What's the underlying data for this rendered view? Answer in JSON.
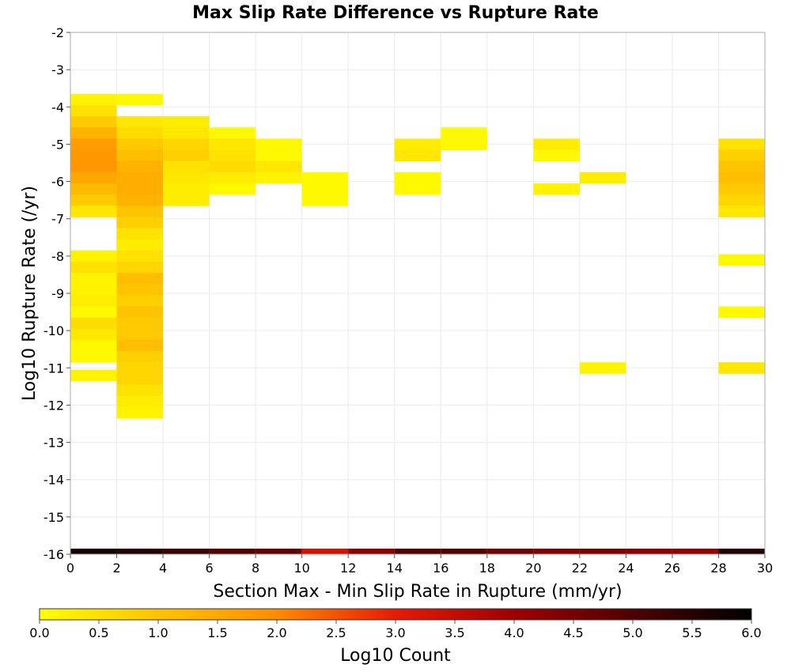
{
  "chart_data": {
    "type": "heatmap",
    "title": "Max Slip Rate Difference vs Rupture Rate",
    "xlabel": "Section Max - Min Slip Rate in Rupture (mm/yr)",
    "ylabel": "Log10 Rupture Rate (/yr)",
    "xlim": [
      0,
      30
    ],
    "ylim": [
      -16,
      -2
    ],
    "x_ticks": [
      "0",
      "2",
      "4",
      "6",
      "8",
      "10",
      "12",
      "14",
      "16",
      "18",
      "20",
      "22",
      "24",
      "26",
      "28",
      "30"
    ],
    "y_ticks": [
      "-2",
      "-3",
      "-4",
      "-5",
      "-6",
      "-7",
      "-8",
      "-9",
      "-10",
      "-11",
      "-12",
      "-13",
      "-14",
      "-15",
      "-16"
    ],
    "grid": true,
    "colorbar": {
      "label": "Log10 Count",
      "range": [
        0,
        6
      ],
      "ticks": [
        "0.0",
        "0.5",
        "1.0",
        "1.5",
        "2.0",
        "2.5",
        "3.0",
        "3.5",
        "4.0",
        "4.5",
        "5.0",
        "5.5",
        "6.0"
      ],
      "colormap": "yellow-orange-red-black"
    },
    "x_bin_width": 2,
    "y_bin_height": 0.3,
    "cells": [
      [
        0,
        -3.8,
        0.2
      ],
      [
        0,
        -4.1,
        0.5
      ],
      [
        0,
        -4.4,
        0.9
      ],
      [
        0,
        -4.7,
        1.3
      ],
      [
        0,
        -5.0,
        1.7
      ],
      [
        0,
        -5.3,
        1.8
      ],
      [
        0,
        -5.6,
        1.8
      ],
      [
        0,
        -5.9,
        1.5
      ],
      [
        0,
        -6.2,
        1.2
      ],
      [
        0,
        -6.5,
        0.9
      ],
      [
        0,
        -6.8,
        0.4
      ],
      [
        0,
        -8.0,
        0.2
      ],
      [
        0,
        -8.3,
        0.5
      ],
      [
        0,
        -8.6,
        0.2
      ],
      [
        0,
        -8.9,
        0.2
      ],
      [
        0,
        -9.2,
        0.3
      ],
      [
        0,
        -9.5,
        0.1
      ],
      [
        0,
        -9.8,
        0.6
      ],
      [
        0,
        -10.1,
        0.4
      ],
      [
        0,
        -10.4,
        0.1
      ],
      [
        0,
        -10.7,
        0.1
      ],
      [
        0,
        -11.2,
        0.2
      ],
      [
        2,
        -3.8,
        0.1
      ],
      [
        2,
        -4.4,
        0.4
      ],
      [
        2,
        -4.7,
        0.6
      ],
      [
        2,
        -5.0,
        0.9
      ],
      [
        2,
        -5.3,
        1.1
      ],
      [
        2,
        -5.6,
        1.3
      ],
      [
        2,
        -5.9,
        1.4
      ],
      [
        2,
        -6.2,
        1.4
      ],
      [
        2,
        -6.5,
        1.3
      ],
      [
        2,
        -6.8,
        1.0
      ],
      [
        2,
        -7.1,
        0.8
      ],
      [
        2,
        -7.4,
        0.5
      ],
      [
        2,
        -7.7,
        0.3
      ],
      [
        2,
        -8.0,
        0.5
      ],
      [
        2,
        -8.3,
        0.7
      ],
      [
        2,
        -8.6,
        1.1
      ],
      [
        2,
        -8.9,
        1.0
      ],
      [
        2,
        -9.2,
        0.8
      ],
      [
        2,
        -9.5,
        1.0
      ],
      [
        2,
        -9.8,
        0.9
      ],
      [
        2,
        -10.1,
        0.9
      ],
      [
        2,
        -10.4,
        1.1
      ],
      [
        2,
        -10.7,
        0.8
      ],
      [
        2,
        -11.0,
        0.7
      ],
      [
        2,
        -11.3,
        0.7
      ],
      [
        2,
        -11.6,
        0.5
      ],
      [
        2,
        -11.9,
        0.3
      ],
      [
        2,
        -12.2,
        0.2
      ],
      [
        4,
        -4.4,
        0.3
      ],
      [
        4,
        -4.7,
        0.4
      ],
      [
        4,
        -5.0,
        0.7
      ],
      [
        4,
        -5.3,
        0.8
      ],
      [
        4,
        -5.6,
        0.5
      ],
      [
        4,
        -5.9,
        0.4
      ],
      [
        4,
        -6.2,
        0.3
      ],
      [
        4,
        -6.5,
        0.3
      ],
      [
        6,
        -4.7,
        0.1
      ],
      [
        6,
        -5.0,
        0.4
      ],
      [
        6,
        -5.3,
        0.5
      ],
      [
        6,
        -5.6,
        0.6
      ],
      [
        6,
        -5.9,
        0.3
      ],
      [
        6,
        -6.2,
        0.1
      ],
      [
        8,
        -5.0,
        0.1
      ],
      [
        8,
        -5.3,
        0.1
      ],
      [
        8,
        -5.6,
        0.4
      ],
      [
        8,
        -5.9,
        0.2
      ],
      [
        10,
        -5.9,
        0.1
      ],
      [
        10,
        -6.2,
        0.1
      ],
      [
        10,
        -6.5,
        0.1
      ],
      [
        14,
        -5.0,
        0.3
      ],
      [
        14,
        -5.3,
        0.4
      ],
      [
        14,
        -5.9,
        0.1
      ],
      [
        14,
        -6.2,
        0.1
      ],
      [
        16,
        -4.7,
        0.1
      ],
      [
        16,
        -5.0,
        0.1
      ],
      [
        20,
        -5.0,
        0.3
      ],
      [
        20,
        -5.3,
        0.1
      ],
      [
        20,
        -6.2,
        0.2
      ],
      [
        22,
        -5.9,
        0.3
      ],
      [
        22,
        -11.0,
        0.2
      ],
      [
        28,
        -5.0,
        0.5
      ],
      [
        28,
        -5.3,
        0.8
      ],
      [
        28,
        -5.6,
        1.0
      ],
      [
        28,
        -5.9,
        1.1
      ],
      [
        28,
        -6.2,
        0.9
      ],
      [
        28,
        -6.5,
        0.7
      ],
      [
        28,
        -6.8,
        0.4
      ],
      [
        28,
        -8.1,
        0.1
      ],
      [
        28,
        -9.5,
        0.1
      ],
      [
        28,
        -11.0,
        0.4
      ]
    ],
    "bottom_row": [
      [
        0,
        5.8
      ],
      [
        2,
        5.6
      ],
      [
        4,
        5.3
      ],
      [
        6,
        5.0
      ],
      [
        8,
        4.8
      ],
      [
        10,
        3.3
      ],
      [
        12,
        4.3
      ],
      [
        14,
        5.0
      ],
      [
        16,
        5.0
      ],
      [
        18,
        4.6
      ],
      [
        20,
        4.4
      ],
      [
        22,
        4.5
      ],
      [
        24,
        4.3
      ],
      [
        26,
        4.2
      ],
      [
        28,
        5.6
      ]
    ]
  }
}
